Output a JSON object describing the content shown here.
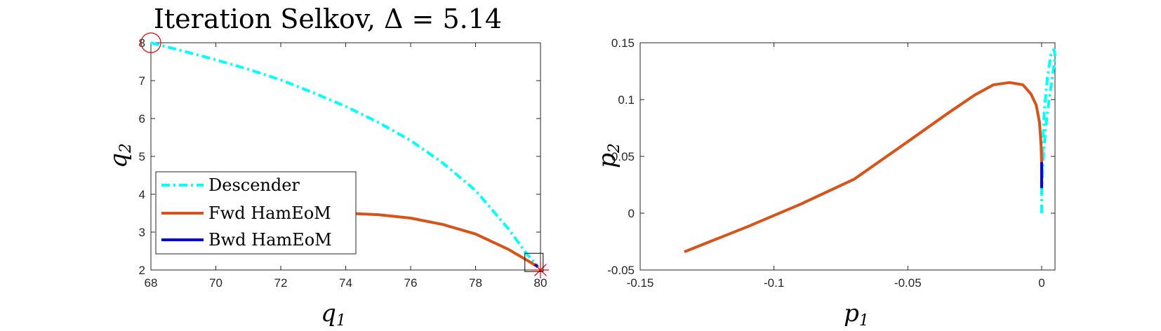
{
  "chart_data": [
    {
      "type": "line",
      "title": "Iteration Selkov, Δ = 5.14",
      "xlabel_base": "q",
      "xlabel_sub": "1",
      "ylabel_base": "q",
      "ylabel_sub": "2",
      "xlim": [
        68,
        80
      ],
      "ylim": [
        2,
        8
      ],
      "xticks": [
        68,
        70,
        72,
        74,
        76,
        78,
        80
      ],
      "yticks": [
        2,
        3,
        4,
        5,
        6,
        7,
        8
      ],
      "grid": false,
      "legend_placement": "lower-left",
      "series": [
        {
          "name": "Descender",
          "color": "#00FFFF",
          "style": "dash-dot",
          "x": [
            68,
            69,
            70,
            71,
            72,
            73,
            74,
            75,
            76,
            77,
            78,
            79,
            79.6,
            79.9
          ],
          "y": [
            8.0,
            7.78,
            7.55,
            7.3,
            7.02,
            6.68,
            6.32,
            5.9,
            5.42,
            4.82,
            4.1,
            3.1,
            2.4,
            2.12
          ]
        },
        {
          "name": "Fwd HamEoM",
          "color": "#D95319",
          "style": "solid",
          "x": [
            74.0,
            75.0,
            76.0,
            77.0,
            78.0,
            79.0,
            79.6,
            79.85
          ],
          "y": [
            3.5,
            3.46,
            3.37,
            3.2,
            2.95,
            2.55,
            2.25,
            2.12
          ]
        },
        {
          "name": "Bwd HamEoM",
          "color": "#0000D0",
          "style": "solid",
          "x": [
            79.82,
            79.92
          ],
          "y": [
            2.15,
            2.08
          ]
        }
      ],
      "markers": [
        {
          "kind": "circle",
          "color": "#E00000",
          "x": 68,
          "y": 8
        },
        {
          "kind": "asterisk",
          "color": "#E00000",
          "x": 80,
          "y": 2
        },
        {
          "kind": "square",
          "color": "#000000",
          "x": 79.8,
          "y": 2.2
        }
      ]
    },
    {
      "type": "line",
      "xlabel_base": "p",
      "xlabel_sub": "1",
      "ylabel_base": "p",
      "ylabel_sub": "2",
      "xlim": [
        -0.15,
        0.005
      ],
      "ylim": [
        -0.05,
        0.15
      ],
      "xticks": [
        -0.15,
        -0.1,
        -0.05,
        0
      ],
      "xticklabels": [
        "-0.15",
        "-0.1",
        "-0.05",
        "0"
      ],
      "yticks": [
        -0.05,
        0,
        0.05,
        0.1,
        0.15
      ],
      "yticklabels": [
        "-0.05",
        "0",
        "0.05",
        "0.1",
        "0.15"
      ],
      "grid": false,
      "series": [
        {
          "name": "Descender",
          "color": "#00FFFF",
          "style": "dash-dot",
          "x": [
            0.0,
            0.0,
            0.0005,
            0.0015,
            0.0028,
            0.004,
            0.0048,
            0.005,
            0.0046,
            0.0035,
            0.0022,
            0.001,
            0.0002,
            0.0
          ],
          "y": [
            0.0,
            0.02,
            0.045,
            0.075,
            0.1,
            0.12,
            0.133,
            0.14,
            0.144,
            0.14,
            0.12,
            0.09,
            0.05,
            0.02
          ]
        },
        {
          "name": "Fwd HamEoM",
          "color": "#D95319",
          "style": "solid",
          "x": [
            -0.1335,
            -0.11,
            -0.09,
            -0.07,
            -0.05,
            -0.035,
            -0.025,
            -0.018,
            -0.012,
            -0.007,
            -0.004,
            -0.002,
            -0.0008,
            -0.0002,
            0.0
          ],
          "y": [
            -0.034,
            -0.012,
            0.008,
            0.03,
            0.063,
            0.088,
            0.104,
            0.113,
            0.115,
            0.113,
            0.105,
            0.095,
            0.08,
            0.06,
            0.045
          ]
        },
        {
          "name": "Bwd HamEoM",
          "color": "#0000D0",
          "style": "solid",
          "x": [
            0.0,
            0.0
          ],
          "y": [
            0.045,
            0.022
          ]
        }
      ]
    }
  ]
}
